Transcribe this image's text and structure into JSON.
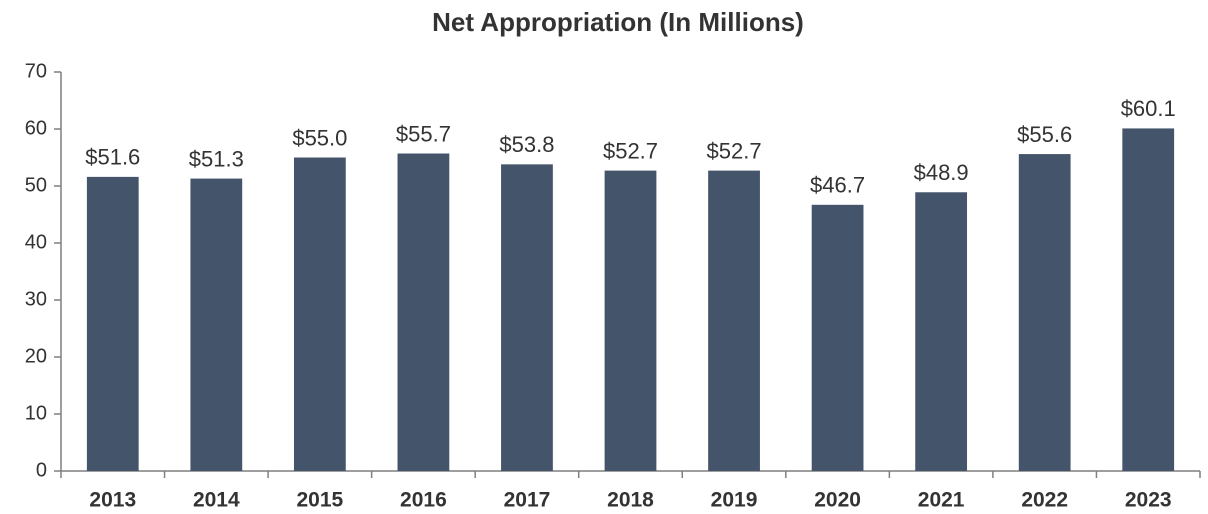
{
  "chart_data": {
    "type": "bar",
    "title": "Net Appropriation  (In Millions)",
    "categories": [
      "2013",
      "2014",
      "2015",
      "2016",
      "2017",
      "2018",
      "2019",
      "2020",
      "2021",
      "2022",
      "2023"
    ],
    "values": [
      51.6,
      51.3,
      55.0,
      55.7,
      53.8,
      52.7,
      52.7,
      46.7,
      48.9,
      55.6,
      60.1
    ],
    "value_labels": [
      "$51.6",
      "$51.3",
      "$55.0",
      "$55.7",
      "$53.8",
      "$52.7",
      "$52.7",
      "$46.7",
      "$48.9",
      "$55.6",
      "$60.1"
    ],
    "color": "#44546a",
    "ylim": [
      0,
      70
    ],
    "yticks": [
      0,
      10,
      20,
      30,
      40,
      50,
      60,
      70
    ],
    "grid": false
  }
}
